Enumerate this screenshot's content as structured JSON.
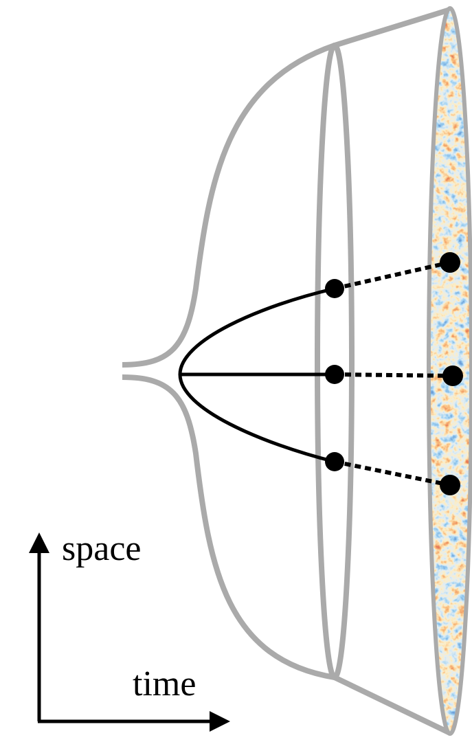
{
  "axes": {
    "vertical": "space",
    "horizontal": "time"
  }
}
